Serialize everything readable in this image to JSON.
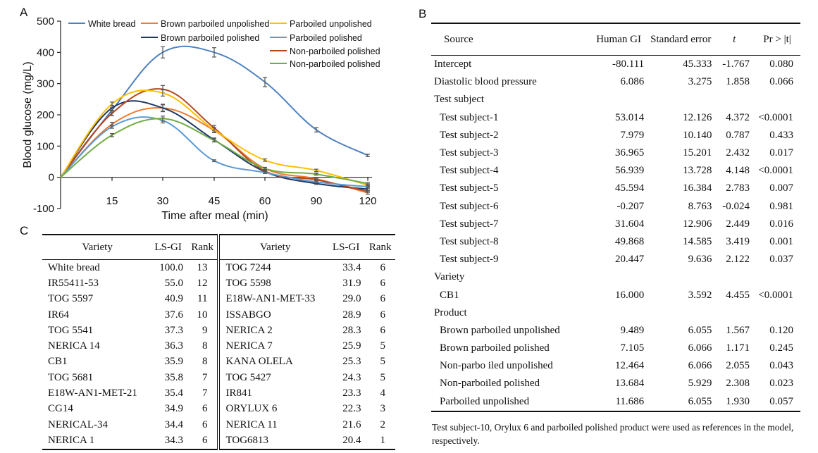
{
  "panel_labels": {
    "a": "A",
    "b": "B",
    "c": "C"
  },
  "chart_data": {
    "type": "line",
    "title": "",
    "xlabel": "Time after meal (min)",
    "ylabel": "Blood glucose (mg/L)",
    "x": [
      0,
      15,
      30,
      45,
      60,
      90,
      120
    ],
    "xticks": [
      "15",
      "30",
      "45",
      "60",
      "90",
      "120"
    ],
    "yticks": [
      "-100",
      "0",
      "100",
      "200",
      "300",
      "400",
      "500"
    ],
    "ylim": [
      -100,
      500
    ],
    "legend_position": "top-right",
    "series": [
      {
        "name": "White bread",
        "color": "#4f81bd",
        "values": [
          0,
          215,
          400,
          400,
          305,
          152,
          70
        ],
        "errors": [
          0,
          8,
          18,
          15,
          15,
          7,
          4
        ]
      },
      {
        "name": "Brown parboiled unpolished",
        "color": "#f07c30",
        "values": [
          0,
          170,
          222,
          150,
          28,
          -5,
          -50
        ],
        "errors": [
          0,
          6,
          10,
          7,
          4,
          4,
          4
        ]
      },
      {
        "name": "Brown parboiled polished",
        "color": "#1f3864",
        "values": [
          0,
          222,
          222,
          120,
          18,
          -20,
          -38
        ],
        "errors": [
          0,
          8,
          12,
          6,
          3,
          3,
          3
        ]
      },
      {
        "name": "Non-parboiled polished",
        "color": "#b3471e",
        "values": [
          0,
          205,
          282,
          158,
          20,
          -8,
          -45
        ],
        "errors": [
          0,
          8,
          12,
          8,
          3,
          3,
          3
        ]
      },
      {
        "name": "Parboiled unpolished",
        "color": "#ffc000",
        "values": [
          0,
          235,
          270,
          152,
          55,
          22,
          -25
        ],
        "errors": [
          0,
          6,
          10,
          7,
          4,
          4,
          4
        ]
      },
      {
        "name": "Parboiled polished",
        "color": "#5b9bd5",
        "values": [
          0,
          162,
          182,
          53,
          15,
          -15,
          -30
        ],
        "errors": [
          0,
          5,
          8,
          3,
          3,
          3,
          3
        ]
      },
      {
        "name": "Non-parboiled polished",
        "color": "#70ad47",
        "values": [
          0,
          135,
          188,
          118,
          28,
          10,
          -20
        ],
        "errors": [
          0,
          5,
          8,
          5,
          3,
          3,
          3
        ]
      }
    ]
  },
  "table_b": {
    "headers": {
      "source": "Source",
      "gi": "Human GI",
      "se": "Standard error",
      "t": "t",
      "p": "Pr > |t|"
    },
    "rows": [
      {
        "source": "Intercept",
        "indent": false,
        "gi": "-80.111",
        "se": "45.333",
        "t": "-1.767",
        "p": "0.080"
      },
      {
        "source": "Diastolic blood pressure",
        "indent": false,
        "gi": "6.086",
        "se": "3.275",
        "t": "1.858",
        "p": "0.066"
      },
      {
        "source": "Test subject",
        "indent": false,
        "gi": "",
        "se": "",
        "t": "",
        "p": ""
      },
      {
        "source": "Test subject-1",
        "indent": true,
        "gi": "53.014",
        "se": "12.126",
        "t": "4.372",
        "p": "<0.0001"
      },
      {
        "source": "Test subject-2",
        "indent": true,
        "gi": "7.979",
        "se": "10.140",
        "t": "0.787",
        "p": "0.433"
      },
      {
        "source": "Test subject-3",
        "indent": true,
        "gi": "36.965",
        "se": "15.201",
        "t": "2.432",
        "p": "0.017"
      },
      {
        "source": "Test subject-4",
        "indent": true,
        "gi": "56.939",
        "se": "13.728",
        "t": "4.148",
        "p": "<0.0001"
      },
      {
        "source": "Test subject-5",
        "indent": true,
        "gi": "45.594",
        "se": "16.384",
        "t": "2.783",
        "p": "0.007"
      },
      {
        "source": "Test subject-6",
        "indent": true,
        "gi": "-0.207",
        "se": "8.763",
        "t": "-0.024",
        "p": "0.981"
      },
      {
        "source": "Test subject-7",
        "indent": true,
        "gi": "31.604",
        "se": "12.906",
        "t": "2.449",
        "p": "0.016"
      },
      {
        "source": "Test subject-8",
        "indent": true,
        "gi": "49.868",
        "se": "14.585",
        "t": "3.419",
        "p": "0.001"
      },
      {
        "source": "Test subject-9",
        "indent": true,
        "gi": "20.447",
        "se": "9.636",
        "t": "2.122",
        "p": "0.037"
      },
      {
        "source": "Variety",
        "indent": false,
        "gi": "",
        "se": "",
        "t": "",
        "p": ""
      },
      {
        "source": "CB1",
        "indent": true,
        "gi": "16.000",
        "se": "3.592",
        "t": "4.455",
        "p": "<0.0001"
      },
      {
        "source": "Product",
        "indent": false,
        "gi": "",
        "se": "",
        "t": "",
        "p": ""
      },
      {
        "source": "Brown parboiled unpolished",
        "indent": true,
        "gi": "9.489",
        "se": "6.055",
        "t": "1.567",
        "p": "0.120"
      },
      {
        "source": "Brown parboiled polished",
        "indent": true,
        "gi": "7.105",
        "se": "6.066",
        "t": "1.171",
        "p": "0.245"
      },
      {
        "source": "Non-parbo iled unpolished",
        "indent": true,
        "gi": "12.464",
        "se": "6.066",
        "t": "2.055",
        "p": "0.043"
      },
      {
        "source": "Non-parboiled polished",
        "indent": true,
        "gi": "13.684",
        "se": "5.929",
        "t": "2.308",
        "p": "0.023"
      },
      {
        "source": "Parboiled unpolished",
        "indent": true,
        "gi": "11.686",
        "se": "6.055",
        "t": "1.930",
        "p": "0.057"
      }
    ],
    "note": "Test subject-10, Orylux 6 and parboiled polished  product were used as references in the model, respectively."
  },
  "table_c": {
    "headers": {
      "variety": "Variety",
      "gi": "LS-GI",
      "rank": "Rank"
    },
    "left": [
      {
        "variety": "White bread",
        "gi": "100.0",
        "rank": "13"
      },
      {
        "variety": "IR55411-53",
        "gi": "55.0",
        "rank": "12"
      },
      {
        "variety": "TOG 5597",
        "gi": "40.9",
        "rank": "11"
      },
      {
        "variety": "IR64",
        "gi": "37.6",
        "rank": "10"
      },
      {
        "variety": "TOG 5541",
        "gi": "37.3",
        "rank": "9"
      },
      {
        "variety": "NERICA 14",
        "gi": "36.3",
        "rank": "8"
      },
      {
        "variety": "CB1",
        "gi": "35.9",
        "rank": "8"
      },
      {
        "variety": "TOG 5681",
        "gi": "35.8",
        "rank": "7"
      },
      {
        "variety": "E18W-AN1-MET-21",
        "gi": "35.4",
        "rank": "7"
      },
      {
        "variety": "CG14",
        "gi": "34.9",
        "rank": "6"
      },
      {
        "variety": "NERICAL-34",
        "gi": "34.4",
        "rank": "6"
      },
      {
        "variety": "NERICA 1",
        "gi": "34.3",
        "rank": "6"
      }
    ],
    "right": [
      {
        "variety": "TOG 7244",
        "gi": "33.4",
        "rank": "6"
      },
      {
        "variety": "TOG 5598",
        "gi": "31.9",
        "rank": "6"
      },
      {
        "variety": "E18W-AN1-MET-33",
        "gi": "29.0",
        "rank": "6"
      },
      {
        "variety": "ISSABGO",
        "gi": "28.9",
        "rank": "6"
      },
      {
        "variety": "NERICA 2",
        "gi": "28.3",
        "rank": "6"
      },
      {
        "variety": "NERICA 7",
        "gi": "25.9",
        "rank": "5"
      },
      {
        "variety": "KANA OLELA",
        "gi": "25.3",
        "rank": "5"
      },
      {
        "variety": "TOG 5427",
        "gi": "24.3",
        "rank": "5"
      },
      {
        "variety": "IR841",
        "gi": "23.3",
        "rank": "4"
      },
      {
        "variety": "ORYLUX 6",
        "gi": "22.3",
        "rank": "3"
      },
      {
        "variety": "NERICA 11",
        "gi": "21.6",
        "rank": "2"
      },
      {
        "variety": "TOG6813",
        "gi": "20.4",
        "rank": "1"
      }
    ]
  }
}
